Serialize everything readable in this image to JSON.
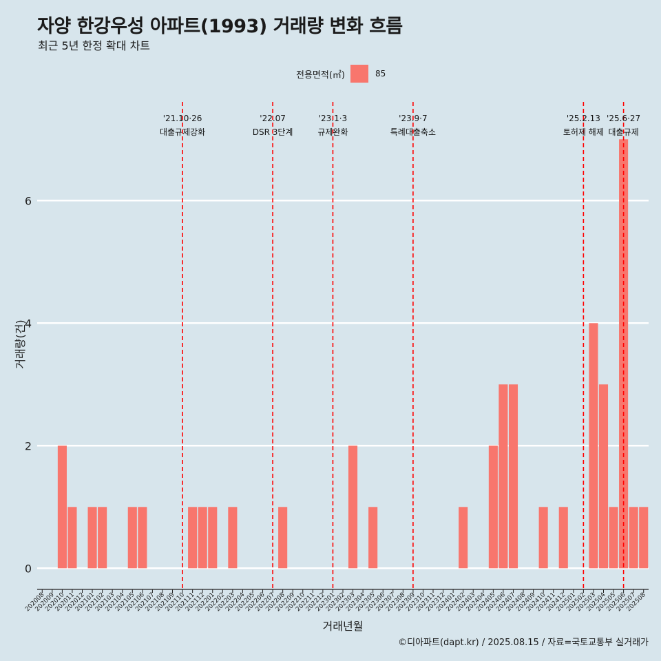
{
  "header": {
    "title": "자양 한강우성 아파트(1993) 거래량 변화 흐름",
    "subtitle": "최근 5년 한정 확대 차트"
  },
  "legend": {
    "title": "전용면적(㎡)",
    "entries": [
      "85"
    ]
  },
  "footer": {
    "caption": "©디아파트(dapt.kr) / 2025.08.15 / 자료=국토교통부 실거래가"
  },
  "colors": {
    "bar": "#f8766d",
    "event_line": "#ff0000",
    "background": "#d7e5ec",
    "grid": "#ffffff"
  },
  "chart_data": {
    "type": "bar",
    "xlabel": "거래년월",
    "ylabel": "거래량(건)",
    "ylim": [
      -0.3,
      7.7
    ],
    "yticks": [
      0,
      2,
      4,
      6
    ],
    "grid": true,
    "legend_position": "top",
    "categories": [
      "202008",
      "202009",
      "202010",
      "202011",
      "202012",
      "202101",
      "202102",
      "202103",
      "202104",
      "202105",
      "202106",
      "202107",
      "202108",
      "202109",
      "202110",
      "202111",
      "202112",
      "202201",
      "202202",
      "202203",
      "202204",
      "202205",
      "202206",
      "202207",
      "202208",
      "202209",
      "202210",
      "202211",
      "202212",
      "202301",
      "202302",
      "202303",
      "202304",
      "202305",
      "202306",
      "202307",
      "202308",
      "202309",
      "202310",
      "202311",
      "202312",
      "202401",
      "202402",
      "202403",
      "202404",
      "202405",
      "202406",
      "202407",
      "202408",
      "202409",
      "202410",
      "202411",
      "202412",
      "202501",
      "202502",
      "202503",
      "202504",
      "202505",
      "202506",
      "202507",
      "202508"
    ],
    "series": [
      {
        "name": "85",
        "values": [
          0,
          0,
          2,
          1,
          0,
          1,
          1,
          0,
          0,
          1,
          1,
          0,
          0,
          0,
          0,
          1,
          1,
          1,
          0,
          1,
          0,
          0,
          0,
          0,
          1,
          0,
          0,
          0,
          0,
          0,
          0,
          2,
          0,
          1,
          0,
          0,
          0,
          0,
          0,
          0,
          0,
          0,
          1,
          0,
          0,
          2,
          3,
          3,
          0,
          0,
          1,
          0,
          1,
          0,
          0,
          4,
          3,
          1,
          7,
          1,
          1
        ]
      }
    ],
    "annotations": [
      {
        "x": "202110",
        "offset": 0.0,
        "date": "'21.10·26",
        "label": "대출규제강화"
      },
      {
        "x": "202207",
        "offset": 0.0,
        "date": "'22.07",
        "label": "DSR 3단계"
      },
      {
        "x": "202301",
        "offset": 0.0,
        "date": "'23.1·3",
        "label": "규제완화"
      },
      {
        "x": "202309",
        "offset": 0.0,
        "date": "'23.9·7",
        "label": "특례대출축소"
      },
      {
        "x": "202502",
        "offset": 0.0,
        "date": "'25.2.13",
        "label": "토허제 해제"
      },
      {
        "x": "202506",
        "offset": 0.0,
        "date": "'25.6·27",
        "label": "대출규제"
      }
    ]
  }
}
